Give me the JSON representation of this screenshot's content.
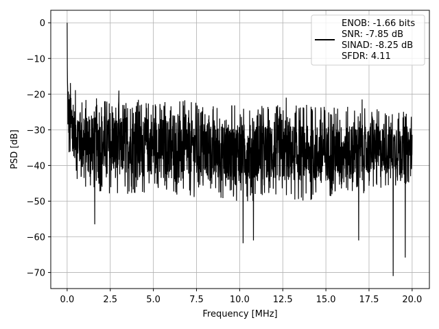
{
  "chart_data": {
    "type": "line",
    "title": "",
    "xlabel": "Frequency [MHz]",
    "ylabel": "PSD [dB]",
    "xlim": [
      -0.95,
      21.0
    ],
    "ylim": [
      -74.5,
      3.5
    ],
    "xticks": [
      0.0,
      2.5,
      5.0,
      7.5,
      10.0,
      12.5,
      15.0,
      17.5,
      20.0
    ],
    "xtick_labels": [
      "0.0",
      "2.5",
      "5.0",
      "7.5",
      "10.0",
      "12.5",
      "15.0",
      "17.5",
      "20.0"
    ],
    "yticks": [
      0,
      -10,
      -20,
      -30,
      -40,
      -50,
      -60,
      -70
    ],
    "ytick_labels": [
      "0",
      "−10",
      "−20",
      "−30",
      "−40",
      "−50",
      "−60",
      "−70"
    ],
    "grid": true,
    "legend_position": "top-right",
    "series": [
      {
        "name": "ENOB: -1.66 bits\nSNR: -7.85 dB\nSINAD: -8.25 dB\nSFDR: 4.11",
        "color": "#000000",
        "x_range": [
          0.0,
          20.0
        ],
        "peak": {
          "x": 0.0,
          "y": 0.0
        },
        "envelope": [
          {
            "x": 0.0,
            "upper": 0.0,
            "lower": -28
          },
          {
            "x": 0.05,
            "upper": -14,
            "lower": -38
          },
          {
            "x": 0.3,
            "upper": -18,
            "lower": -42
          },
          {
            "x": 1.0,
            "upper": -21,
            "lower": -47
          },
          {
            "x": 2.5,
            "upper": -21,
            "lower": -48
          },
          {
            "x": 5.0,
            "upper": -21,
            "lower": -48
          },
          {
            "x": 10.0,
            "upper": -23,
            "lower": -50
          },
          {
            "x": 15.0,
            "upper": -23,
            "lower": -50
          },
          {
            "x": 20.0,
            "upper": -25,
            "lower": -45
          }
        ],
        "notable_minima": [
          {
            "x": 1.6,
            "y": -56.5
          },
          {
            "x": 10.2,
            "y": -61.8
          },
          {
            "x": 10.8,
            "y": -61.0
          },
          {
            "x": 16.9,
            "y": -61.0
          },
          {
            "x": 18.9,
            "y": -71.0
          },
          {
            "x": 19.6,
            "y": -65.8
          }
        ],
        "notable_maxima": [
          {
            "x": 3.0,
            "y": -19.0
          },
          {
            "x": 12.7,
            "y": -21.0
          },
          {
            "x": 17.1,
            "y": -21.5
          }
        ]
      }
    ]
  }
}
